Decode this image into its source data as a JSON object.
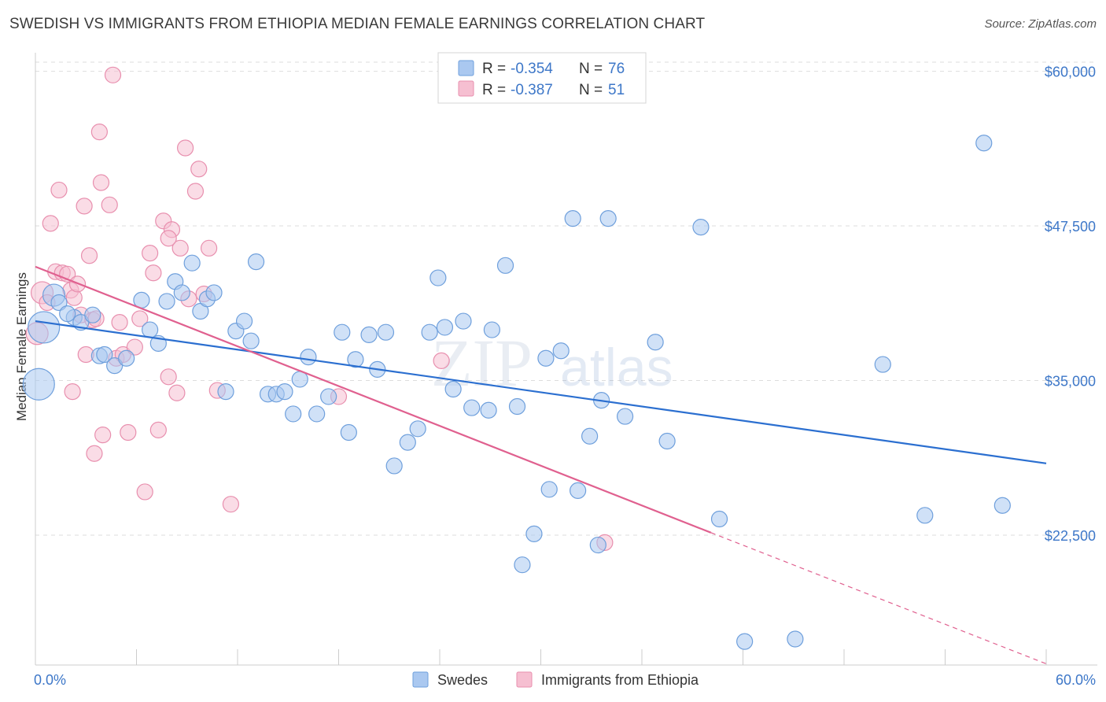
{
  "title": "SWEDISH VS IMMIGRANTS FROM ETHIOPIA MEDIAN FEMALE EARNINGS CORRELATION CHART",
  "source": "Source: ZipAtlas.com",
  "watermark": {
    "zip": "ZIP",
    "atlas": "atlas"
  },
  "colors": {
    "blue_fill": "#aac8f0",
    "blue_stroke": "#6e9fdc",
    "blue_line": "#2b6fd0",
    "pink_fill": "#f6bfd1",
    "pink_stroke": "#e88fae",
    "pink_line": "#e0608f",
    "axis_text": "#3d77c8",
    "grid": "#dddddd"
  },
  "legend": {
    "rows": [
      {
        "r_label": "R =",
        "r_value": "-0.354",
        "n_label": "N =",
        "n_value": "76"
      },
      {
        "r_label": "R =",
        "r_value": "-0.387",
        "n_label": "N =",
        "n_value": "51"
      }
    ]
  },
  "bottom_legend": {
    "swedes": "Swedes",
    "ethiopia": "Immigrants from Ethiopia"
  },
  "chart_data": {
    "type": "scatter",
    "title": "SWEDISH VS IMMIGRANTS FROM ETHIOPIA MEDIAN FEMALE EARNINGS CORRELATION CHART",
    "ylabel": "Median Female Earnings",
    "xlabel": "",
    "x_tick_labels": [
      "0.0%",
      "60.0%"
    ],
    "y_tick_labels": [
      "$60,000",
      "$47,500",
      "$35,000",
      "$22,500"
    ],
    "y_ticks": [
      60000,
      47500,
      35000,
      22500
    ],
    "xlim": [
      0,
      60
    ],
    "ylim": [
      12000,
      61500
    ],
    "grid": true,
    "series": [
      {
        "name": "Swedes",
        "trend": {
          "x0": 0,
          "y0": 39800,
          "x1": 60,
          "y1": 28300
        },
        "points": [
          [
            0.2,
            34700,
            20
          ],
          [
            0.5,
            39300,
            20
          ],
          [
            1.1,
            41900,
            14
          ],
          [
            1.4,
            41300,
            10
          ],
          [
            2.3,
            40100,
            10
          ],
          [
            2.7,
            39700,
            10
          ],
          [
            3.4,
            40300,
            10
          ],
          [
            3.8,
            37000,
            10
          ],
          [
            4.1,
            37100,
            10
          ],
          [
            4.7,
            36200,
            10
          ],
          [
            5.4,
            36800,
            10
          ],
          [
            6.3,
            41500,
            10
          ],
          [
            6.8,
            39100,
            10
          ],
          [
            7.3,
            38000,
            10
          ],
          [
            7.8,
            41400,
            10
          ],
          [
            8.3,
            43000,
            10
          ],
          [
            8.7,
            42100,
            10
          ],
          [
            9.3,
            44500,
            10
          ],
          [
            9.8,
            40600,
            10
          ],
          [
            10.2,
            41600,
            10
          ],
          [
            10.6,
            42100,
            10
          ],
          [
            11.3,
            34100,
            10
          ],
          [
            11.9,
            39000,
            10
          ],
          [
            12.4,
            39800,
            10
          ],
          [
            12.8,
            38200,
            10
          ],
          [
            13.1,
            44600,
            10
          ],
          [
            13.8,
            33900,
            10
          ],
          [
            14.3,
            33900,
            10
          ],
          [
            14.8,
            34100,
            10
          ],
          [
            15.3,
            32300,
            10
          ],
          [
            15.7,
            35100,
            10
          ],
          [
            16.2,
            36900,
            10
          ],
          [
            16.7,
            32300,
            10
          ],
          [
            17.4,
            33700,
            10
          ],
          [
            18.2,
            38900,
            10
          ],
          [
            18.6,
            30800,
            10
          ],
          [
            19.0,
            36700,
            10
          ],
          [
            19.8,
            38700,
            10
          ],
          [
            20.3,
            35900,
            10
          ],
          [
            20.8,
            38900,
            10
          ],
          [
            21.3,
            28100,
            10
          ],
          [
            22.1,
            30000,
            10
          ],
          [
            22.7,
            31100,
            10
          ],
          [
            23.4,
            38900,
            10
          ],
          [
            23.9,
            43300,
            10
          ],
          [
            24.3,
            39300,
            10
          ],
          [
            24.8,
            34300,
            10
          ],
          [
            25.4,
            39800,
            10
          ],
          [
            25.9,
            32800,
            10
          ],
          [
            26.9,
            32600,
            10
          ],
          [
            27.1,
            39100,
            10
          ],
          [
            27.9,
            44300,
            10
          ],
          [
            28.6,
            32900,
            10
          ],
          [
            28.9,
            20100,
            10
          ],
          [
            29.6,
            22600,
            10
          ],
          [
            30.3,
            36800,
            10
          ],
          [
            30.5,
            26200,
            10
          ],
          [
            31.2,
            37400,
            10
          ],
          [
            31.9,
            48100,
            10
          ],
          [
            32.2,
            26100,
            10
          ],
          [
            32.9,
            30500,
            10
          ],
          [
            33.4,
            21700,
            10
          ],
          [
            33.6,
            33400,
            10
          ],
          [
            34.0,
            48100,
            10
          ],
          [
            35.0,
            32100,
            10
          ],
          [
            36.8,
            38100,
            10
          ],
          [
            37.5,
            30100,
            10
          ],
          [
            39.5,
            47400,
            10
          ],
          [
            40.6,
            23800,
            10
          ],
          [
            42.1,
            13900,
            10
          ],
          [
            45.1,
            14100,
            10
          ],
          [
            50.3,
            36300,
            10
          ],
          [
            52.8,
            24100,
            10
          ],
          [
            56.3,
            54200,
            10
          ],
          [
            57.4,
            24900,
            10
          ],
          [
            1.9,
            40400,
            10
          ]
        ]
      },
      {
        "name": "Immigrants from Ethiopia",
        "trend": {
          "x0": 0,
          "y0": 44200,
          "x1": 40.1,
          "y1": 22700,
          "dash_x1": 60,
          "dash_y1": 12100
        },
        "points": [
          [
            0.1,
            38800,
            14
          ],
          [
            0.4,
            42100,
            14
          ],
          [
            0.7,
            41300,
            10
          ],
          [
            0.9,
            47700,
            10
          ],
          [
            1.2,
            43800,
            10
          ],
          [
            1.4,
            50400,
            10
          ],
          [
            1.6,
            43700,
            10
          ],
          [
            1.9,
            43600,
            10
          ],
          [
            2.1,
            42300,
            10
          ],
          [
            2.3,
            41700,
            10
          ],
          [
            2.2,
            34100,
            10
          ],
          [
            2.5,
            42800,
            10
          ],
          [
            2.7,
            40300,
            10
          ],
          [
            2.9,
            49100,
            10
          ],
          [
            3.0,
            37100,
            10
          ],
          [
            3.2,
            45100,
            10
          ],
          [
            3.4,
            39900,
            10
          ],
          [
            3.5,
            29100,
            10
          ],
          [
            3.6,
            40000,
            10
          ],
          [
            3.9,
            51000,
            10
          ],
          [
            3.8,
            55100,
            10
          ],
          [
            4.0,
            30600,
            10
          ],
          [
            4.4,
            49200,
            10
          ],
          [
            4.6,
            59700,
            10
          ],
          [
            4.8,
            36800,
            10
          ],
          [
            5.0,
            39700,
            10
          ],
          [
            5.2,
            37100,
            10
          ],
          [
            5.5,
            30800,
            10
          ],
          [
            5.9,
            37700,
            10
          ],
          [
            6.2,
            40000,
            10
          ],
          [
            6.5,
            26000,
            10
          ],
          [
            6.8,
            45300,
            10
          ],
          [
            7.0,
            43700,
            10
          ],
          [
            7.3,
            31000,
            10
          ],
          [
            7.6,
            47900,
            10
          ],
          [
            7.9,
            35300,
            10
          ],
          [
            8.1,
            47200,
            10
          ],
          [
            8.4,
            34000,
            10
          ],
          [
            8.6,
            45700,
            10
          ],
          [
            8.9,
            53800,
            10
          ],
          [
            9.1,
            41600,
            10
          ],
          [
            9.5,
            50300,
            10
          ],
          [
            9.7,
            52100,
            10
          ],
          [
            10.0,
            42000,
            10
          ],
          [
            10.3,
            45700,
            10
          ],
          [
            10.8,
            34200,
            10
          ],
          [
            11.6,
            25000,
            10
          ],
          [
            18.0,
            33700,
            10
          ],
          [
            24.1,
            36600,
            10
          ],
          [
            33.8,
            21900,
            10
          ],
          [
            7.9,
            46500,
            10
          ]
        ]
      }
    ]
  }
}
